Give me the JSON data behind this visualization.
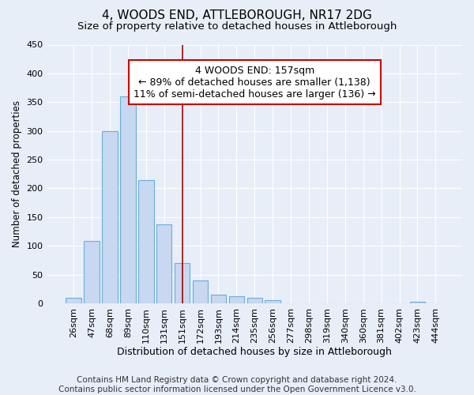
{
  "title": "4, WOODS END, ATTLEBOROUGH, NR17 2DG",
  "subtitle": "Size of property relative to detached houses in Attleborough",
  "xlabel": "Distribution of detached houses by size in Attleborough",
  "ylabel": "Number of detached properties",
  "categories": [
    "26sqm",
    "47sqm",
    "68sqm",
    "89sqm",
    "110sqm",
    "131sqm",
    "151sqm",
    "172sqm",
    "193sqm",
    "214sqm",
    "235sqm",
    "256sqm",
    "277sqm",
    "298sqm",
    "319sqm",
    "340sqm",
    "360sqm",
    "381sqm",
    "402sqm",
    "423sqm",
    "444sqm"
  ],
  "bar_values": [
    10,
    108,
    300,
    360,
    215,
    138,
    70,
    40,
    15,
    12,
    10,
    5,
    0,
    0,
    0,
    0,
    0,
    0,
    0,
    3,
    0
  ],
  "bar_color": "#c8d8f0",
  "bar_edge_color": "#6aaed6",
  "vline_x": 6,
  "vline_color": "#aa0000",
  "annotation_text": "4 WOODS END: 157sqm\n← 89% of detached houses are smaller (1,138)\n11% of semi-detached houses are larger (136) →",
  "annotation_box_color": "#ffffff",
  "annotation_box_edge_color": "#cc0000",
  "ylim": [
    0,
    450
  ],
  "yticks": [
    0,
    50,
    100,
    150,
    200,
    250,
    300,
    350,
    400,
    450
  ],
  "footnote": "Contains HM Land Registry data © Crown copyright and database right 2024.\nContains public sector information licensed under the Open Government Licence v3.0.",
  "background_color": "#e8eef8",
  "plot_bg_color": "#e8eef8",
  "grid_color": "#ffffff",
  "title_fontsize": 11,
  "subtitle_fontsize": 9.5,
  "xlabel_fontsize": 9,
  "ylabel_fontsize": 8.5,
  "tick_fontsize": 8,
  "annotation_fontsize": 9,
  "footnote_fontsize": 7.5
}
